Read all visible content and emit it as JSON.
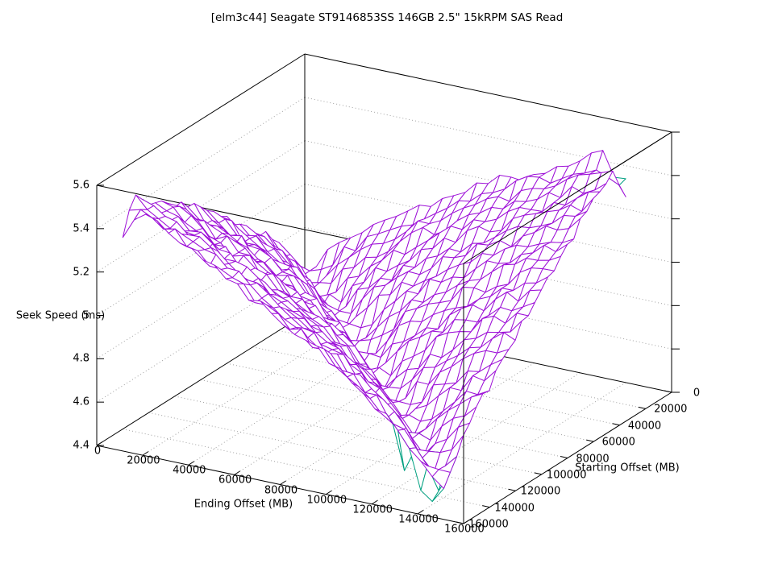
{
  "title": "[elm3c44] Seagate ST9146853SS 146GB 2.5\" 15kRPM SAS Read",
  "axes": {
    "x": {
      "label": "Ending Offset (MB)",
      "range": [
        0,
        160000
      ],
      "ticks": [
        0,
        20000,
        40000,
        60000,
        80000,
        100000,
        120000,
        140000,
        160000
      ]
    },
    "y": {
      "label": "Starting Offset (MB)",
      "range": [
        0,
        160000
      ],
      "ticks": [
        0,
        20000,
        40000,
        60000,
        80000,
        100000,
        120000,
        140000,
        160000
      ]
    },
    "z": {
      "label": "Seek Speed (ms)",
      "range": [
        4.4,
        5.6
      ],
      "ticks": [
        4.4,
        4.6,
        4.8,
        5,
        5.2,
        5.4,
        5.6
      ]
    }
  },
  "colors": {
    "background": "#ffffff",
    "box": "#000000",
    "grid": "#a0a0a0",
    "surface_primary": "#9e12d8",
    "surface_secondary": "#00a080"
  },
  "chart_data": {
    "type": "surface3d_wireframe",
    "title": "[elm3c44] Seagate ST9146853SS 146GB 2.5\" 15kRPM SAS Read",
    "xlabel": "Ending Offset (MB)",
    "ylabel": "Starting Offset (MB)",
    "zlabel": "Seek Speed (ms)",
    "xlim": [
      0,
      160000
    ],
    "ylim": [
      0,
      160000
    ],
    "zlim": [
      4.4,
      5.6
    ],
    "grid": "dotted",
    "legend": "none",
    "offsets_mb": [
      0,
      10000,
      20000,
      30000,
      40000,
      50000,
      60000,
      70000,
      80000,
      90000,
      100000,
      110000,
      120000,
      130000,
      140000
    ],
    "z_seek_ms_rows_start_cols_end": [
      [
        4.57,
        4.71,
        4.8,
        4.88,
        4.94,
        5.01,
        5.07,
        5.13,
        5.18,
        5.23,
        5.28,
        5.33,
        5.38,
        5.44,
        5.27
      ],
      [
        4.71,
        4.57,
        4.71,
        4.8,
        4.87,
        4.94,
        5.0,
        5.06,
        5.12,
        5.17,
        5.22,
        5.27,
        5.32,
        5.36,
        5.41
      ],
      [
        4.8,
        4.71,
        4.57,
        4.7,
        4.79,
        4.87,
        4.93,
        5.0,
        5.05,
        5.11,
        5.16,
        5.21,
        5.26,
        5.31,
        5.35
      ],
      [
        4.88,
        4.8,
        4.7,
        4.56,
        4.7,
        4.79,
        4.86,
        4.93,
        4.99,
        5.05,
        5.1,
        5.15,
        5.2,
        5.25,
        5.29
      ],
      [
        4.94,
        4.87,
        4.79,
        4.7,
        4.56,
        4.69,
        4.78,
        4.85,
        4.92,
        4.98,
        5.04,
        5.09,
        5.14,
        5.19,
        5.23
      ],
      [
        5.01,
        4.94,
        4.87,
        4.79,
        4.69,
        4.55,
        4.68,
        4.77,
        4.84,
        4.91,
        4.97,
        5.02,
        5.08,
        5.13,
        5.17
      ],
      [
        5.07,
        5.0,
        4.93,
        4.86,
        4.78,
        4.68,
        4.54,
        4.67,
        4.76,
        4.83,
        4.89,
        4.95,
        5.01,
        5.06,
        5.11
      ],
      [
        5.13,
        5.06,
        5.0,
        4.93,
        4.85,
        4.77,
        4.67,
        4.53,
        4.66,
        4.75,
        4.82,
        4.88,
        4.94,
        4.99,
        5.05
      ],
      [
        5.18,
        5.12,
        5.05,
        4.99,
        4.92,
        4.84,
        4.76,
        4.66,
        4.53,
        4.65,
        4.73,
        4.8,
        4.87,
        4.92,
        4.98
      ],
      [
        5.23,
        5.17,
        5.11,
        5.05,
        4.98,
        4.91,
        4.83,
        4.75,
        4.65,
        4.52,
        4.64,
        4.72,
        4.79,
        4.85,
        4.91
      ],
      [
        5.28,
        5.22,
        5.16,
        5.1,
        5.04,
        4.97,
        4.89,
        4.82,
        4.73,
        4.64,
        4.51,
        4.62,
        4.7,
        4.77,
        4.83
      ],
      [
        5.33,
        5.27,
        5.21,
        5.15,
        5.09,
        5.02,
        4.95,
        4.88,
        4.8,
        4.72,
        4.62,
        4.5,
        4.6,
        4.68,
        4.75
      ],
      [
        5.37,
        5.32,
        5.26,
        5.2,
        5.14,
        5.08,
        5.01,
        4.94,
        4.87,
        4.79,
        4.7,
        4.6,
        4.48,
        4.58,
        4.66
      ],
      [
        5.44,
        5.36,
        5.31,
        5.25,
        5.19,
        5.13,
        5.06,
        4.99,
        4.92,
        4.85,
        4.77,
        4.68,
        4.58,
        4.46,
        4.56
      ],
      [
        5.29,
        5.41,
        5.35,
        5.29,
        5.23,
        5.17,
        5.11,
        5.05,
        4.98,
        4.91,
        4.83,
        4.75,
        4.66,
        4.56,
        4.44
      ]
    ],
    "series": [
      {
        "name": "read-seek-surface",
        "color": "#9e12d8"
      },
      {
        "name": "secondary-surface",
        "color": "#00a080",
        "spike_points_start_end_z": [
          [
            140000,
            135000,
            4.37
          ],
          [
            135000,
            135000,
            4.4
          ],
          [
            140000,
            130000,
            4.41
          ],
          [
            130000,
            125000,
            4.38
          ],
          [
            125000,
            120000,
            4.42
          ],
          [
            135000,
            120000,
            4.46
          ],
          [
            120000,
            115000,
            4.44
          ],
          [
            0,
            140000,
            5.34
          ],
          [
            130000,
            0,
            5.33
          ]
        ]
      }
    ],
    "noise": 0.032
  }
}
